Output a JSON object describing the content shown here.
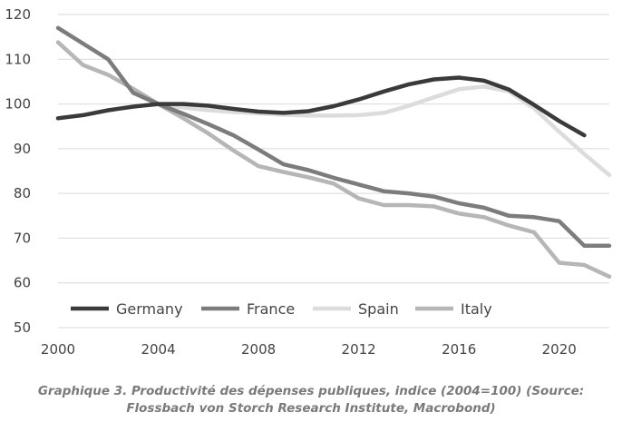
{
  "chart_data": {
    "type": "line",
    "xlim": [
      2000,
      2022
    ],
    "ylim": [
      50,
      120
    ],
    "x_ticks": [
      "2000",
      "2004",
      "2008",
      "2012",
      "2016",
      "2020"
    ],
    "y_ticks": [
      "50",
      "60",
      "70",
      "80",
      "90",
      "100",
      "110",
      "120"
    ],
    "grid": true,
    "legend_position": "bottom-left",
    "x": [
      2000,
      2001,
      2002,
      2003,
      2004,
      2005,
      2006,
      2007,
      2008,
      2009,
      2010,
      2011,
      2012,
      2013,
      2014,
      2015,
      2016,
      2017,
      2018,
      2019,
      2020,
      2021,
      2022
    ],
    "series": [
      {
        "name": "Germany",
        "color": "#3a3a3a",
        "values": [
          96.8,
          97.5,
          98.6,
          99.4,
          100.0,
          100.0,
          99.6,
          98.9,
          98.3,
          98.0,
          98.4,
          99.5,
          101.0,
          102.8,
          104.4,
          105.5,
          105.9,
          105.2,
          103.2,
          99.8,
          96.2,
          93.0,
          null
        ]
      },
      {
        "name": "France",
        "color": "#7c7c7c",
        "values": [
          117.0,
          113.5,
          110.0,
          102.5,
          100.0,
          97.8,
          95.5,
          93.0,
          89.8,
          86.5,
          85.2,
          83.5,
          82.0,
          80.5,
          80.0,
          79.3,
          77.8,
          76.8,
          75.0,
          74.7,
          73.8,
          68.3,
          68.3
        ]
      },
      {
        "name": "Spain",
        "color": "#dcdcdc",
        "values": [
          null,
          null,
          null,
          null,
          100.0,
          99.2,
          98.6,
          98.2,
          97.9,
          97.6,
          97.4,
          97.4,
          97.5,
          98.0,
          99.6,
          101.5,
          103.3,
          103.9,
          102.8,
          99.0,
          93.8,
          88.8,
          84.1
        ]
      },
      {
        "name": "Italy",
        "color": "#b6b6b6",
        "values": [
          113.8,
          108.7,
          106.5,
          103.4,
          100.0,
          96.8,
          93.4,
          89.6,
          86.1,
          84.8,
          83.6,
          82.2,
          78.9,
          77.4,
          77.4,
          77.1,
          75.5,
          74.7,
          72.8,
          71.3,
          64.5,
          64.0,
          61.4
        ]
      }
    ]
  },
  "caption": {
    "line1": "Graphique 3. Productivité des dépenses publiques, indice (2004=100) (Source:",
    "line2": "Flossbach von Storch Research Institute, Macrobond)"
  }
}
